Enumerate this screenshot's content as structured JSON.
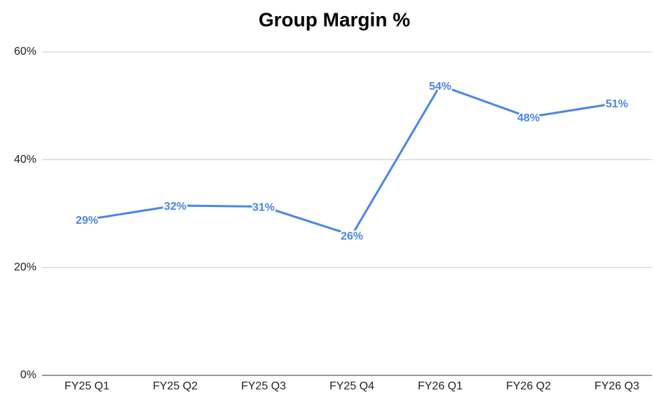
{
  "chart_data": {
    "type": "line",
    "title": "Group Margin %",
    "categories": [
      "FY25 Q1",
      "FY25 Q2",
      "FY25 Q3",
      "FY25 Q4",
      "FY26 Q1",
      "FY26 Q2",
      "FY26 Q3"
    ],
    "series": [
      {
        "name": "Group Margin %",
        "color": "#4a86e8",
        "values": [
          28.9,
          31.5,
          31.3,
          26,
          53.8,
          47.9,
          50.5
        ],
        "value_labels": [
          "29%",
          "32%",
          "31%",
          "26%",
          "54%",
          "48%",
          "51%"
        ]
      }
    ],
    "ylim": [
      0,
      60
    ],
    "yticks": [
      {
        "value": 0,
        "label": "0%"
      },
      {
        "value": 20,
        "label": "20%"
      },
      {
        "value": 40,
        "label": "40%"
      },
      {
        "value": 60,
        "label": "60%"
      }
    ],
    "grid": true
  }
}
